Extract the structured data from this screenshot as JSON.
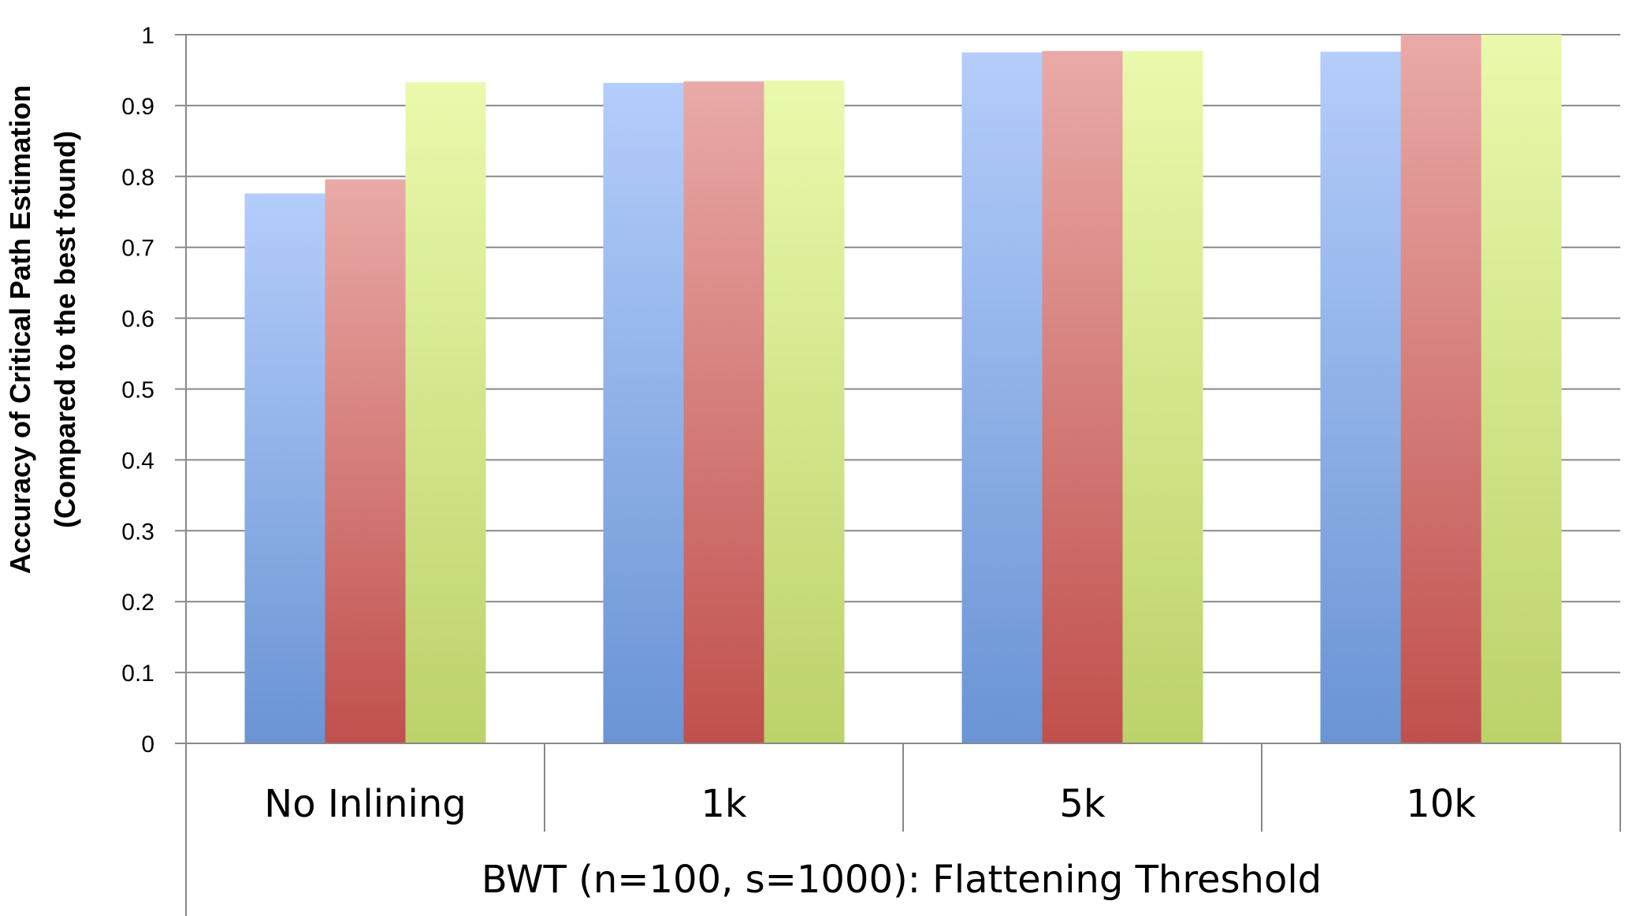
{
  "chart_data": {
    "type": "bar",
    "title": "",
    "xlabel": "BWT (n=100, s=1000): Flattening Threshold",
    "ylabel_lines": [
      "Accuracy of Critical Path Estimation",
      "(Compared to the best found)"
    ],
    "categories": [
      "No Inlining",
      "1k",
      "5k",
      "10k"
    ],
    "ylim": [
      0,
      1
    ],
    "yticks": [
      "0",
      "0.1",
      "0.2",
      "0.3",
      "0.4",
      "0.5",
      "0.6",
      "0.7",
      "0.8",
      "0.9",
      "1"
    ],
    "grid": true,
    "legend": "none",
    "series": [
      {
        "values": [
          0.776,
          0.932,
          0.975,
          0.976
        ],
        "colors": [
          "#b4cdfb",
          "#6a94d4"
        ]
      },
      {
        "values": [
          0.796,
          0.934,
          0.977,
          1.0
        ],
        "colors": [
          "#e9aaa7",
          "#c0504d"
        ]
      },
      {
        "values": [
          0.933,
          0.935,
          0.977,
          1.0
        ],
        "colors": [
          "#eaf9ac",
          "#bcd26a"
        ]
      }
    ]
  }
}
